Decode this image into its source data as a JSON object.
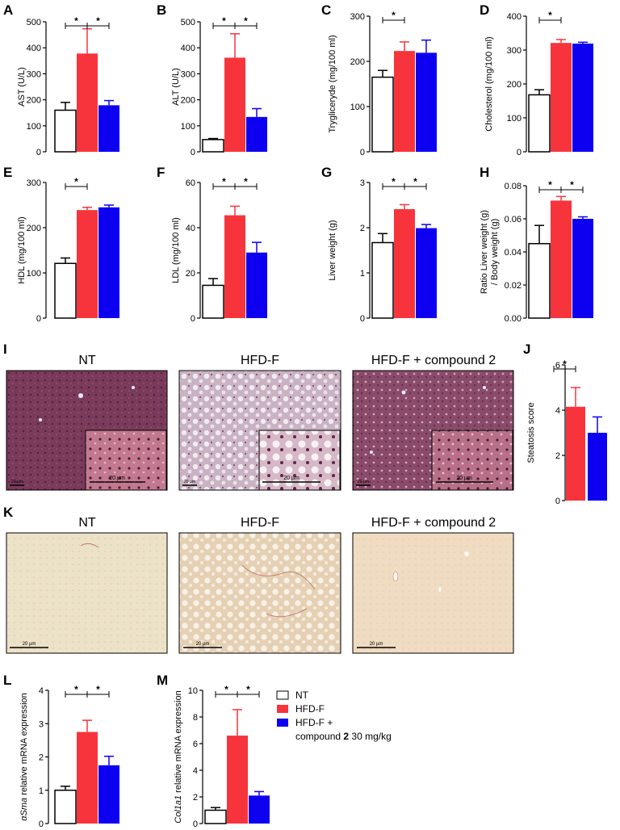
{
  "colors": {
    "nt": "#ffffff",
    "hfd": "#f7343c",
    "cmp": "#0d00f0",
    "stroke": "#000000"
  },
  "chart_data": [
    {
      "panel": "A",
      "type": "bar",
      "ylabel": "AST (U/L)",
      "ylim": [
        0,
        500
      ],
      "ticks": [
        0,
        100,
        200,
        300,
        400,
        500
      ],
      "values": [
        160,
        378,
        179
      ],
      "errors": [
        30,
        95,
        18
      ],
      "sig": [
        [
          0,
          1
        ],
        [
          1,
          2
        ]
      ]
    },
    {
      "panel": "B",
      "type": "bar",
      "ylabel": "ALT (U/L)",
      "ylim": [
        0,
        500
      ],
      "ticks": [
        0,
        100,
        200,
        300,
        400,
        500
      ],
      "values": [
        47,
        362,
        134
      ],
      "errors": [
        4,
        92,
        32
      ],
      "sig": [
        [
          0,
          1
        ],
        [
          1,
          2
        ]
      ]
    },
    {
      "panel": "C",
      "type": "bar",
      "ylabel": "Trygliceryde (mg/100 ml)",
      "ylim": [
        0,
        300
      ],
      "ticks": [
        0,
        100,
        200,
        300
      ],
      "values": [
        165,
        223,
        219
      ],
      "errors": [
        15,
        20,
        28
      ],
      "sig": [
        [
          0,
          1
        ]
      ]
    },
    {
      "panel": "D",
      "type": "bar",
      "ylabel": "Cholesterol (mg/100 ml)",
      "ylim": [
        0,
        400
      ],
      "ticks": [
        0,
        100,
        200,
        300,
        400
      ],
      "values": [
        168,
        321,
        319
      ],
      "errors": [
        15,
        10,
        4
      ],
      "sig": [
        [
          0,
          1
        ]
      ]
    },
    {
      "panel": "E",
      "type": "bar",
      "ylabel": "HDL (mg/100 ml)",
      "ylim": [
        0,
        300
      ],
      "ticks": [
        0,
        100,
        200,
        300
      ],
      "values": [
        121,
        239,
        245
      ],
      "errors": [
        12,
        6,
        5
      ],
      "sig": [
        [
          0,
          1
        ]
      ]
    },
    {
      "panel": "F",
      "type": "bar",
      "ylabel": "LDL (mg/100 ml)",
      "ylim": [
        0,
        60
      ],
      "ticks": [
        0,
        20,
        40,
        60
      ],
      "values": [
        14.5,
        45.5,
        29
      ],
      "errors": [
        3,
        4,
        4.5
      ],
      "sig": [
        [
          0,
          1
        ],
        [
          1,
          2
        ]
      ]
    },
    {
      "panel": "G",
      "type": "bar",
      "ylabel": "Liver weight (g)",
      "ylim": [
        0,
        3
      ],
      "ticks": [
        0,
        1,
        2,
        3
      ],
      "values": [
        1.67,
        2.41,
        1.99
      ],
      "errors": [
        0.2,
        0.1,
        0.08
      ],
      "sig": [
        [
          0,
          1
        ],
        [
          1,
          2
        ]
      ]
    },
    {
      "panel": "H",
      "type": "bar",
      "ylabel": "Ratio Liver weight (g)",
      "ylabel2": "/ Body weight (g)",
      "ylim": [
        0,
        0.08
      ],
      "ticks": [
        "0.00",
        "0.02",
        "0.04",
        "0.06",
        "0.08"
      ],
      "values": [
        0.045,
        0.071,
        0.06
      ],
      "errors": [
        0.011,
        0.0025,
        0.0012
      ],
      "sig": [
        [
          0,
          1
        ],
        [
          1,
          2
        ]
      ]
    },
    {
      "panel": "J",
      "type": "bar",
      "ylabel": "Steatosis score",
      "ylim": [
        0,
        6
      ],
      "ticks": [
        0,
        2,
        4,
        6
      ],
      "values": [
        0,
        4.15,
        3.0
      ],
      "errors": [
        0,
        0.85,
        0.7
      ],
      "sig": [
        [
          0,
          1
        ]
      ]
    },
    {
      "panel": "L",
      "type": "bar",
      "ylabel_italic": "αSma",
      "ylabel": " relative mRNA expression",
      "ylim": [
        0,
        4
      ],
      "ticks": [
        0,
        1,
        2,
        3,
        4
      ],
      "values": [
        1.0,
        2.75,
        1.75
      ],
      "errors": [
        0.12,
        0.35,
        0.27
      ],
      "sig": [
        [
          0,
          1
        ],
        [
          1,
          2
        ]
      ]
    },
    {
      "panel": "M",
      "type": "bar",
      "ylabel_italic": "Col1a1",
      "ylabel": " relative mRNA expression",
      "ylim": [
        0,
        10
      ],
      "ticks": [
        0,
        2,
        4,
        6,
        8,
        10
      ],
      "values": [
        1.0,
        6.6,
        2.1
      ],
      "errors": [
        0.2,
        1.95,
        0.3
      ],
      "sig": [
        [
          0,
          1
        ],
        [
          1,
          2
        ]
      ]
    }
  ],
  "legend": {
    "nt": "NT",
    "hfd": "HFD-F",
    "cmp_line1": "HFD-F +",
    "cmp_line2_pre": "compound ",
    "cmp_line2_bold": "2",
    "cmp_line2_post": " 30 mg/kg"
  },
  "star": "*",
  "histology": {
    "I": {
      "letter": "I",
      "titles": [
        "NT",
        "HFD-F",
        "HFD-F + compound 2"
      ],
      "scale_main": "20 µm",
      "scale_inset": "20 µm"
    },
    "K": {
      "letter": "K",
      "titles": [
        "NT",
        "HFD-F",
        "HFD-F + compound 2"
      ],
      "scale": "20 µm"
    }
  }
}
